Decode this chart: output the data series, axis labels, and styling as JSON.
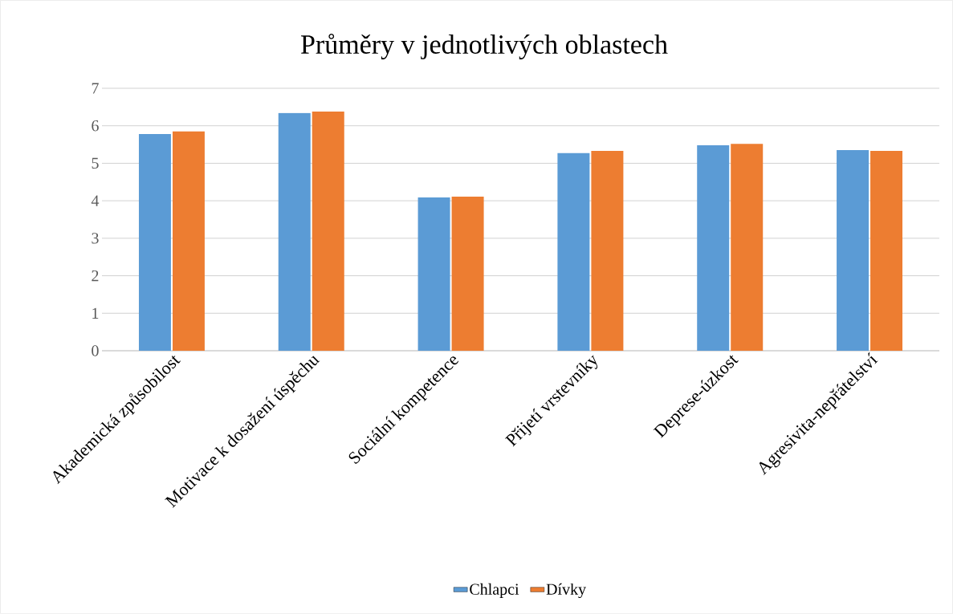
{
  "chart_data": {
    "type": "bar",
    "title": "Průměry v jednotlivých oblastech",
    "categories": [
      "Akademická způsobilost",
      "Motivace k dosažení úspěchu",
      "Sociální kompetence",
      "Přijetí vrstevníky",
      "Deprese-úzkost",
      "Agresivita-nepřátelství"
    ],
    "series": [
      {
        "name": "Chlapci",
        "color": "#5b9bd5",
        "values": [
          5.78,
          6.34,
          4.09,
          5.27,
          5.48,
          5.35
        ]
      },
      {
        "name": "Dívky",
        "color": "#ed7d31",
        "values": [
          5.85,
          6.38,
          4.11,
          5.33,
          5.52,
          5.33
        ]
      }
    ],
    "ylim": [
      0,
      7
    ],
    "yticks": [
      0,
      1,
      2,
      3,
      4,
      5,
      6,
      7
    ],
    "grid": "y",
    "legend": "bottom"
  }
}
